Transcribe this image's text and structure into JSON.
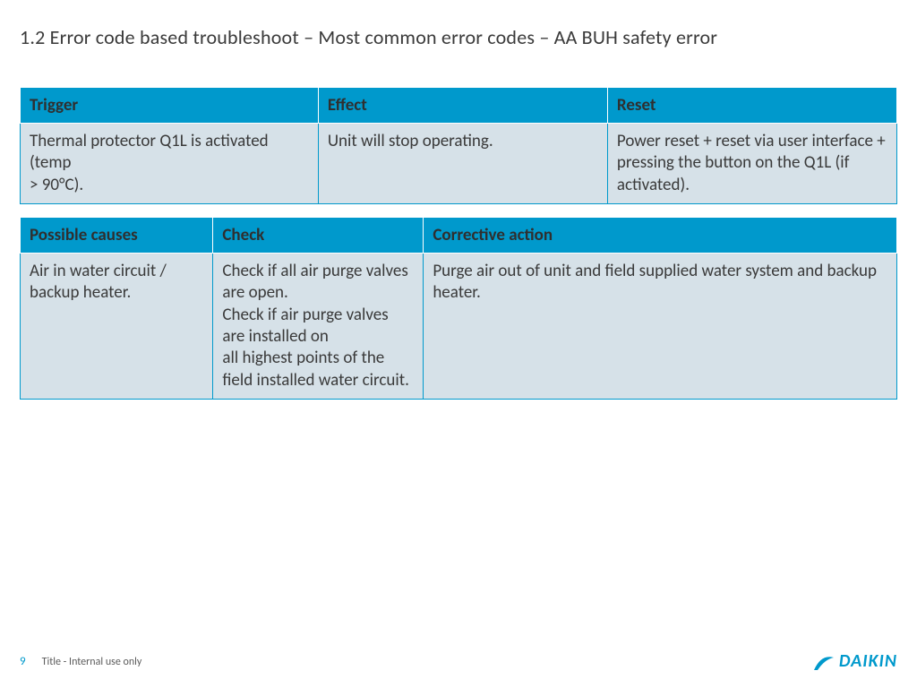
{
  "colors": {
    "header_bg": "#0099cc",
    "header_border": "#ffffff",
    "body_bg": "#d6e1e8",
    "body_border": "#0099cc",
    "title_text": "#3a3a3a",
    "pagenum": "#0099cc",
    "logo": "#0099cc"
  },
  "title": "1.2 Error code based troubleshoot –  Most common error codes – AA BUH safety error",
  "table1": {
    "columns": [
      "Trigger",
      "Effect",
      "Reset"
    ],
    "col_widths": [
      "34%",
      "33%",
      "33%"
    ],
    "rows": [
      [
        "Thermal protector Q1L is activated (temp\n> 90°C).",
        "Unit will stop operating.",
        "Power reset + reset via user interface +\npressing the button on the Q1L (if\nactivated)."
      ]
    ]
  },
  "table2": {
    "columns": [
      "Possible causes",
      "Check",
      "Corrective action"
    ],
    "col_widths": [
      "22%",
      "24%",
      "54%"
    ],
    "rows": [
      [
        "Air in water circuit / backup heater.",
        "Check if all air purge valves are open.\nCheck if air purge valves are installed on\nall highest points of the field installed water circuit.",
        "Purge air out of unit and field supplied water system and backup heater."
      ]
    ]
  },
  "footer": {
    "page_number": "9",
    "title": "Title - Internal use only",
    "brand": "DAIKIN"
  }
}
